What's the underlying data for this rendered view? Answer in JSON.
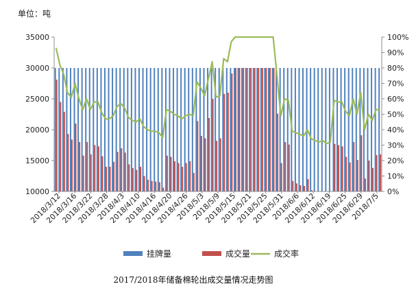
{
  "chart_data": {
    "type": "bar",
    "unit_label": "单位：吨",
    "caption": "2017/2018年储备棉轮出成交量情况走势图",
    "colors": {
      "listed": "#4f81bd",
      "traded": "#c0504d",
      "rate": "#9bbb59"
    },
    "y_left": {
      "min": 10000,
      "max": 35000,
      "ticks": [
        "10000",
        "15000",
        "20000",
        "25000",
        "30000",
        "35000"
      ]
    },
    "y_right": {
      "min": 0,
      "max": 100,
      "ticks": [
        "0%",
        "10%",
        "20%",
        "30%",
        "40%",
        "50%",
        "60%",
        "70%",
        "80%",
        "90%",
        "100%"
      ]
    },
    "x_tick_labels": [
      "2018/3/12",
      "2018/3/16",
      "2018/3/22",
      "2018/3/28",
      "2018/4/3",
      "2018/4/10",
      "2018/4/16",
      "2018/4/20",
      "2018/4/26",
      "2018/5/3",
      "2018/5/9",
      "2018/5/15",
      "2018/5/21",
      "2018/5/25",
      "2018/5/31",
      "2018/6/6",
      "2018/6/12",
      "2018/6/19",
      "2018/6/25",
      "2018/6/29",
      "2018/7/5"
    ],
    "legend": [
      "挂牌量",
      "成交量",
      "成交率"
    ],
    "series": [
      {
        "name": "挂牌量",
        "type": "bar",
        "values": [
          30000,
          30000,
          30000,
          30000,
          30000,
          30000,
          30000,
          30000,
          30000,
          30000,
          30000,
          30000,
          30000,
          30000,
          30000,
          30000,
          30000,
          30000,
          30000,
          30000,
          30000,
          30000,
          30000,
          30000,
          30000,
          30000,
          30000,
          30000,
          30000,
          30000,
          30000,
          30000,
          30000,
          30000,
          30000,
          30000,
          30000,
          30000,
          30000,
          30000,
          30000,
          30000,
          30000,
          30000,
          30000,
          30000,
          30000,
          30000,
          30000,
          30000,
          30000,
          30000,
          30000,
          30000,
          30000,
          30000,
          30000,
          30000,
          30000,
          30000,
          30000,
          30000,
          30000,
          30000,
          30000,
          30000,
          30000,
          30000,
          30000,
          30000,
          30000,
          30000,
          30000,
          30000,
          30000,
          30000,
          30000,
          30000,
          30000,
          30000,
          30000,
          30000,
          30000,
          30000,
          30000,
          30000
        ]
      },
      {
        "name": "成交量",
        "type": "bar",
        "values": [
          28100,
          24500,
          22900,
          19300,
          18400,
          21000,
          18000,
          15800,
          18000,
          16000,
          17500,
          17300,
          15700,
          14000,
          14000,
          14800,
          16400,
          17000,
          16300,
          14400,
          13800,
          13500,
          14000,
          12500,
          11900,
          11700,
          11600,
          11500,
          10600,
          15800,
          15600,
          14900,
          14600,
          14000,
          14600,
          14900,
          13000,
          21400,
          19000,
          18600,
          21900,
          25000,
          18200,
          18600,
          25800,
          26000,
          29100,
          30000,
          30000,
          30000,
          30000,
          30000,
          30000,
          30000,
          30000,
          30000,
          30000,
          30000,
          22600,
          14600,
          18000,
          17600,
          11700,
          11300,
          11000,
          10900,
          12000,
          10200,
          10000,
          10000,
          10000,
          10000,
          10000,
          17700,
          17500,
          17300,
          15600,
          14700,
          18000,
          15100,
          19100,
          12100,
          15000,
          13800,
          15900,
          16000
        ]
      },
      {
        "name": "成交率",
        "type": "line",
        "values": [
          93,
          82,
          76,
          64,
          61,
          70,
          60,
          53,
          60,
          53,
          58,
          58,
          51,
          47,
          47,
          49,
          55,
          57,
          54,
          48,
          46,
          45,
          47,
          42,
          40,
          39,
          39,
          38,
          35,
          53,
          52,
          50,
          49,
          47,
          49,
          50,
          49,
          71,
          67,
          62,
          73,
          84,
          61,
          62,
          86,
          84,
          97,
          100,
          100,
          100,
          100,
          100,
          100,
          100,
          100,
          100,
          100,
          100,
          75,
          49,
          60,
          59,
          39,
          38,
          37,
          36,
          40,
          34,
          33,
          32,
          33,
          31,
          32,
          59,
          58,
          58,
          52,
          49,
          60,
          50,
          64,
          40,
          50,
          46,
          53,
          53
        ]
      }
    ]
  }
}
